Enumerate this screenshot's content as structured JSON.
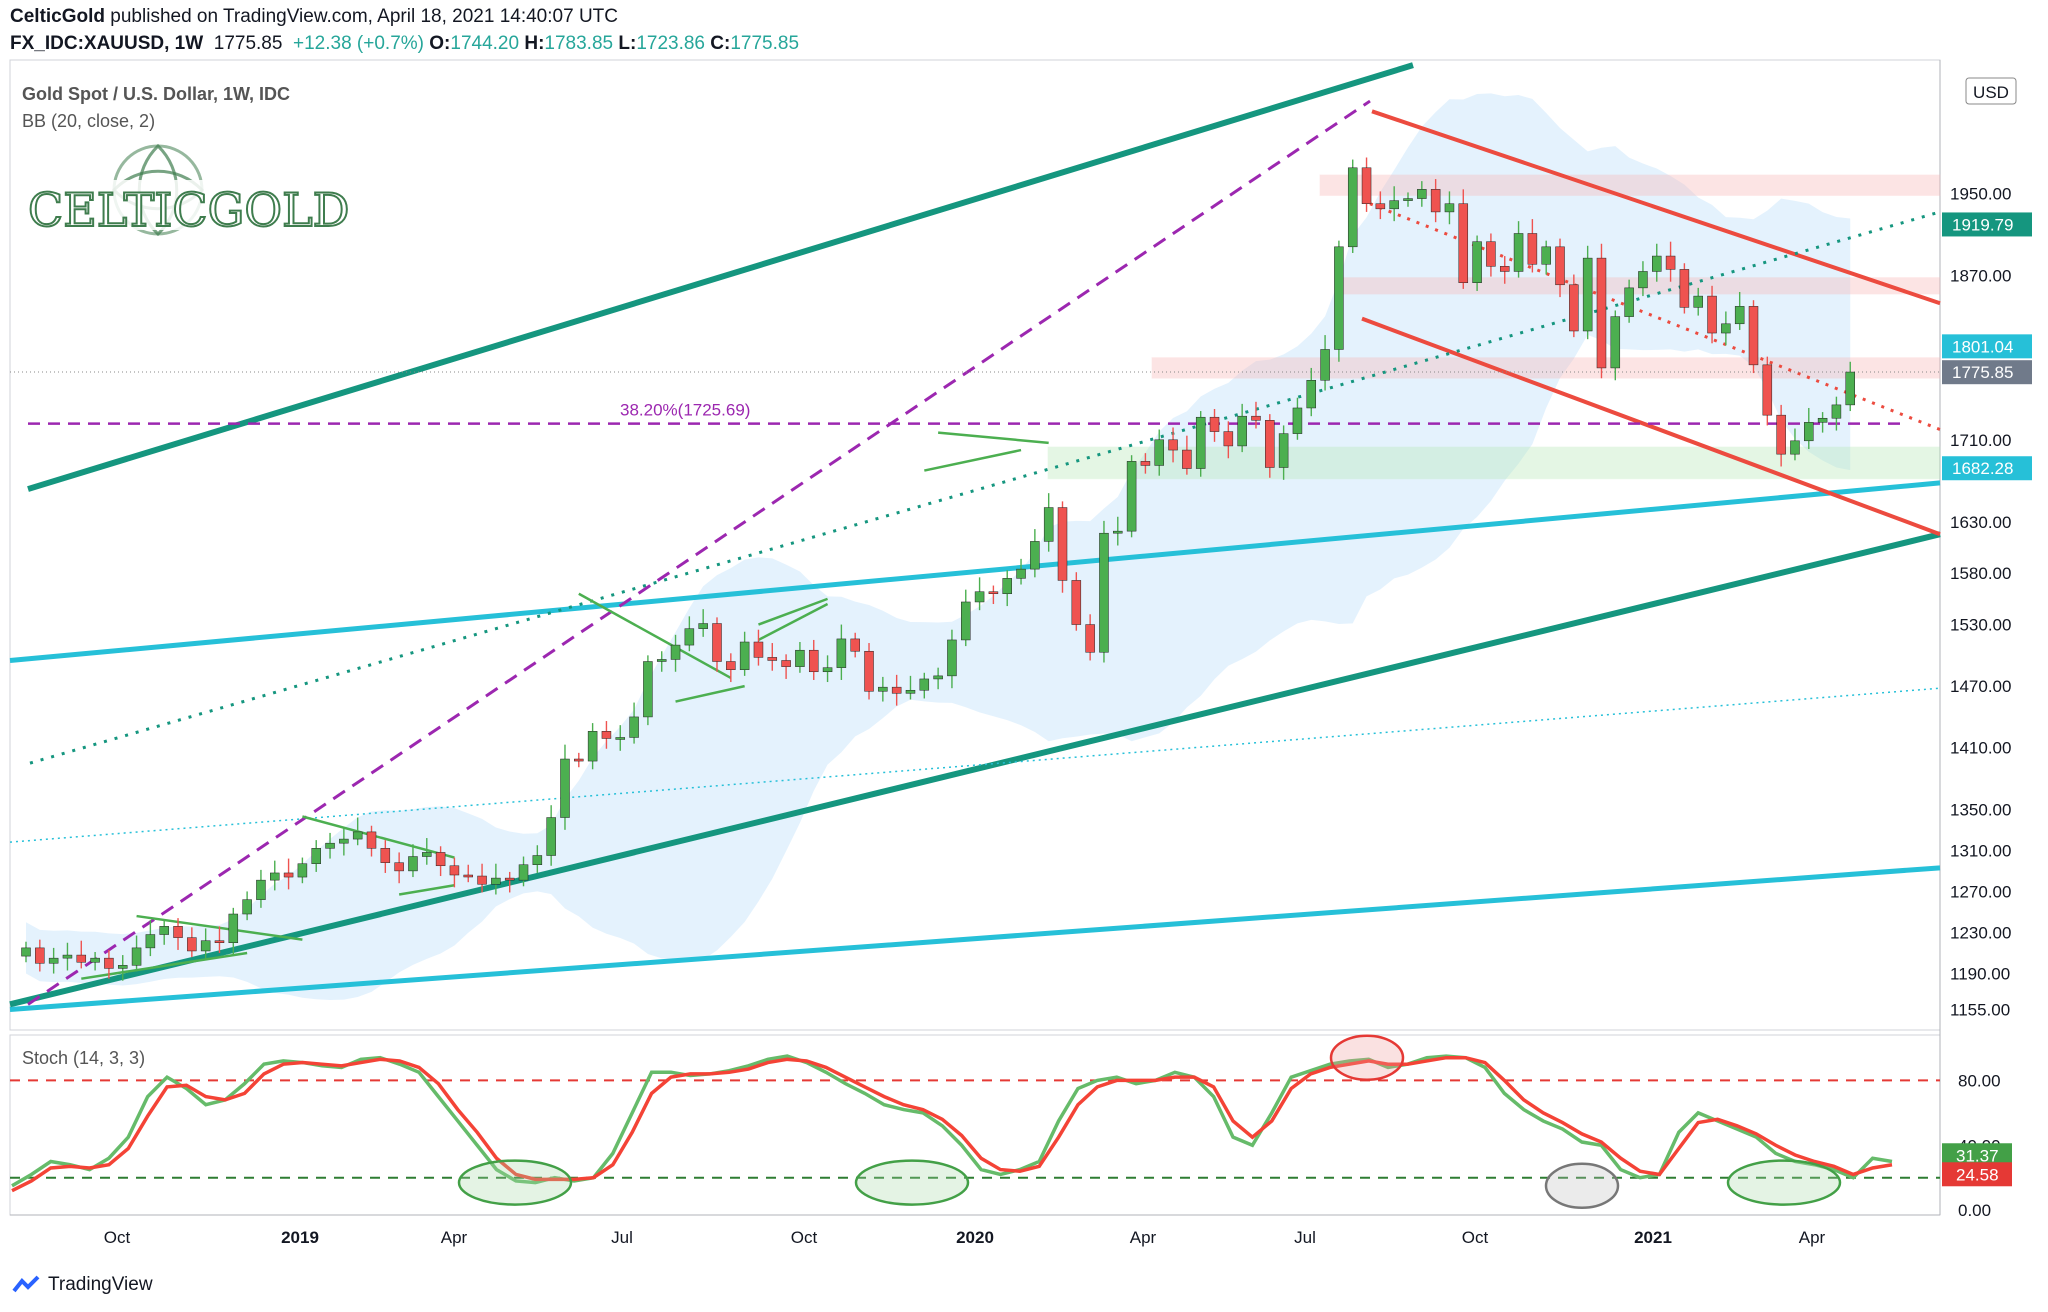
{
  "header": {
    "publisher": "CelticGold",
    "published_text": "published on TradingView.com, April 18, 2021 14:40:07 UTC",
    "symbol": "FX_IDC:XAUUSD, 1W",
    "last": "1775.85",
    "change": "+12.38 (+0.7%)",
    "o_label": "O:",
    "o": "1744.20",
    "h_label": "H:",
    "h": "1783.85",
    "l_label": "L:",
    "l": "1723.86",
    "c_label": "C:",
    "c": "1775.85"
  },
  "legend": {
    "title": "Gold Spot / U.S. Dollar, 1W, IDC",
    "bb": "BB (20, close, 2)",
    "stoch": "Stoch (14, 3, 3)"
  },
  "logo_text": "CELTICGOLD",
  "currency": "USD",
  "fib_label": "38.20%(1725.69)",
  "footer_brand": "TradingView",
  "colors": {
    "up": "#4caf50",
    "down": "#ef5350",
    "teal": "#15967f",
    "cyan": "#26c0d8",
    "red_line": "#ec4b3f",
    "purple": "#9c27b0",
    "bb_fill": "#dbeefc",
    "stoch_k": "#66bb6a",
    "stoch_d": "#f44336"
  },
  "chart_data": [
    {
      "type": "candlestick",
      "title": "Gold Spot / U.S. Dollar, 1W, IDC",
      "y_ticks": [
        1155,
        1190,
        1230,
        1270,
        1310,
        1350,
        1410,
        1470,
        1530,
        1580,
        1630,
        1710,
        1870,
        1950
      ],
      "y_range": [
        1135,
        2080
      ],
      "x_ticks": [
        "Oct",
        "2019",
        "Apr",
        "Jul",
        "Oct",
        "2020",
        "Apr",
        "Jul",
        "Oct",
        "2021",
        "Apr"
      ],
      "price_labels": [
        {
          "value": 1919.79,
          "color": "#15967f"
        },
        {
          "value": 1801.04,
          "color": "#26c0d8"
        },
        {
          "value": 1775.85,
          "color": "#707a8a"
        },
        {
          "value": 1682.28,
          "color": "#26c0d8"
        }
      ],
      "closes": [
        1215,
        1200,
        1205,
        1208,
        1201,
        1205,
        1195,
        1198,
        1215,
        1228,
        1236,
        1225,
        1212,
        1222,
        1220,
        1248,
        1262,
        1281,
        1288,
        1284,
        1297,
        1312,
        1317,
        1321,
        1328,
        1312,
        1298,
        1290,
        1304,
        1308,
        1295,
        1286,
        1285,
        1277,
        1283,
        1281,
        1296,
        1305,
        1342,
        1399,
        1397,
        1426,
        1419,
        1420,
        1440,
        1494,
        1496,
        1510,
        1526,
        1531,
        1494,
        1486,
        1513,
        1498,
        1495,
        1489,
        1505,
        1484,
        1488,
        1516,
        1504,
        1465,
        1469,
        1463,
        1466,
        1477,
        1480,
        1515,
        1552,
        1562,
        1560,
        1575,
        1584,
        1611,
        1644,
        1573,
        1530,
        1503,
        1619,
        1621,
        1689,
        1685,
        1710,
        1700,
        1682,
        1732,
        1718,
        1704,
        1733,
        1729,
        1683,
        1716,
        1741,
        1768,
        1798,
        1898,
        1975,
        1940,
        1935,
        1943,
        1945,
        1954,
        1932,
        1940,
        1863,
        1903,
        1879,
        1874,
        1911,
        1881,
        1898,
        1861,
        1816,
        1887,
        1780,
        1830,
        1858,
        1874,
        1889,
        1876,
        1839,
        1850,
        1814,
        1823,
        1840,
        1783,
        1734,
        1696,
        1709,
        1727,
        1731,
        1744,
        1776
      ],
      "bollinger_note": "BB (20, close, 2)",
      "fibonacci": {
        "label": "38.20%(1725.69)",
        "value": 1725.69
      }
    },
    {
      "type": "line",
      "title": "Stoch (14, 3, 3)",
      "y_ticks": [
        0.0,
        40.0,
        80.0
      ],
      "y_range": [
        -3,
        108
      ],
      "levels": [
        80,
        20
      ],
      "series": [
        {
          "name": "%K",
          "value_label": "31.37"
        },
        {
          "name": "%D",
          "value_label": "24.58"
        }
      ],
      "k": [
        15,
        22,
        30,
        28,
        25,
        32,
        45,
        70,
        82,
        75,
        65,
        68,
        78,
        90,
        92,
        91,
        89,
        88,
        93,
        94,
        90,
        85,
        70,
        55,
        40,
        25,
        18,
        17,
        20,
        18,
        20,
        35,
        60,
        85,
        85,
        83,
        84,
        86,
        89,
        93,
        95,
        91,
        85,
        78,
        72,
        65,
        62,
        60,
        52,
        40,
        25,
        22,
        25,
        30,
        55,
        75,
        80,
        82,
        78,
        80,
        85,
        82,
        70,
        45,
        40,
        60,
        82,
        86,
        90,
        92,
        93,
        88,
        90,
        94,
        95,
        94,
        88,
        72,
        62,
        55,
        50,
        42,
        40,
        25,
        20,
        22,
        48,
        60,
        55,
        50,
        45,
        35,
        30,
        28,
        25,
        20,
        32,
        30
      ],
      "d": [
        12,
        18,
        26,
        27,
        26,
        28,
        38,
        58,
        76,
        77,
        70,
        68,
        72,
        84,
        90,
        91,
        90,
        89,
        91,
        93,
        92,
        88,
        78,
        62,
        48,
        32,
        22,
        19,
        19,
        19,
        20,
        28,
        48,
        72,
        82,
        84,
        84,
        85,
        87,
        91,
        93,
        92,
        88,
        82,
        76,
        70,
        65,
        62,
        56,
        46,
        32,
        25,
        24,
        27,
        45,
        65,
        76,
        80,
        80,
        80,
        82,
        82,
        76,
        55,
        45,
        55,
        75,
        84,
        88,
        90,
        92,
        90,
        90,
        92,
        94,
        94,
        91,
        80,
        68,
        60,
        54,
        47,
        42,
        32,
        24,
        22,
        38,
        54,
        56,
        52,
        47,
        40,
        34,
        30,
        27,
        22,
        26,
        28
      ]
    }
  ]
}
